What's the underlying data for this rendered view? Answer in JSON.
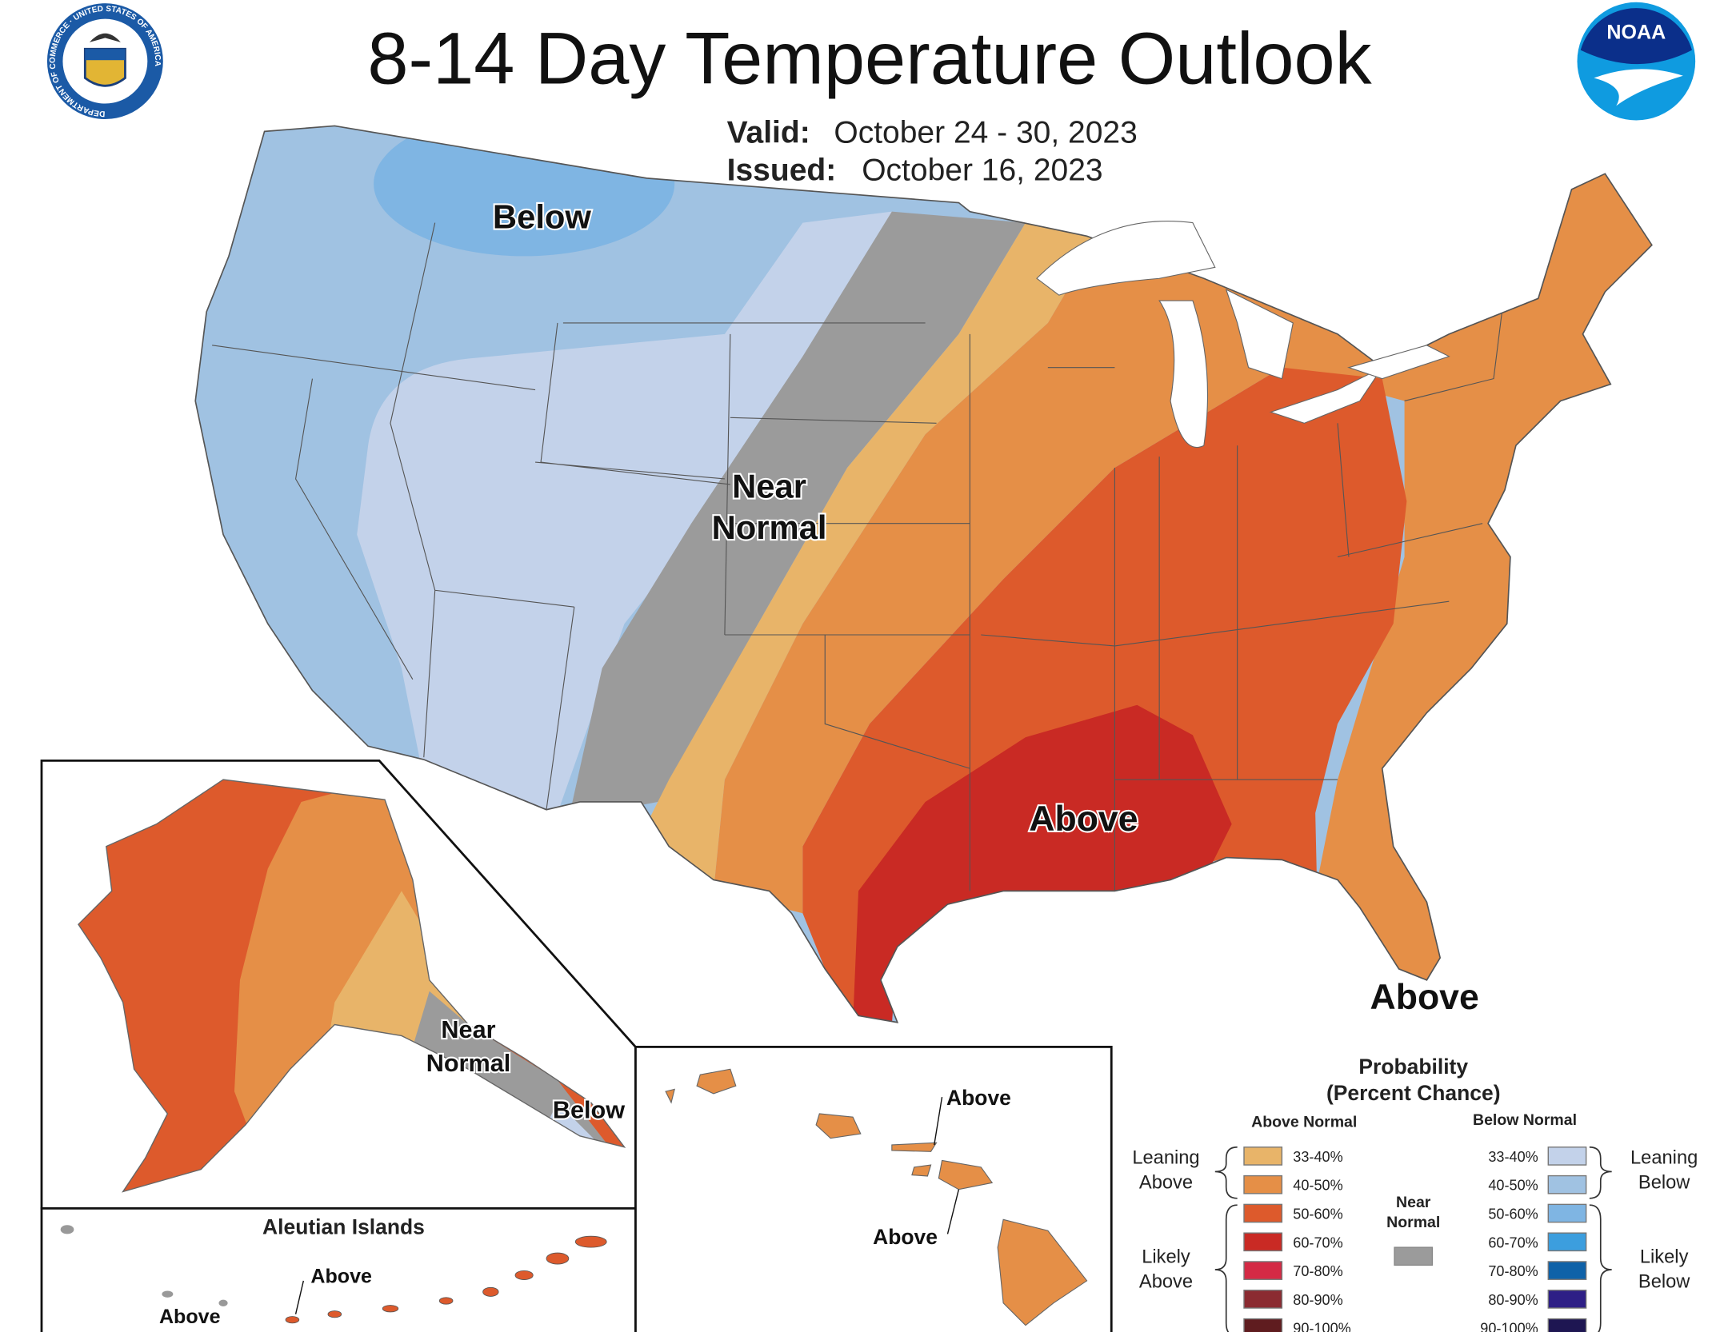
{
  "header": {
    "title": "8-14 Day Temperature Outlook",
    "valid_label": "Valid:",
    "valid_value": "October 24 - 30, 2023",
    "issued_label": "Issued:",
    "issued_value": "October 16, 2023",
    "left_logo_text": "DEPARTMENT OF COMMERCE · UNITED STATES OF AMERICA",
    "right_logo_text": "NOAA"
  },
  "map_labels": {
    "conus_below": "Below",
    "conus_near_1": "Near",
    "conus_near_2": "Normal",
    "conus_above": "Above",
    "conus_above_fl": "Above",
    "ak_near_1": "Near",
    "ak_near_2": "Normal",
    "ak_below": "Below",
    "aleutian_title": "Aleutian Islands",
    "aleutian_above_1": "Above",
    "aleutian_above_2": "Above",
    "hawaii_above_1": "Above",
    "hawaii_above_2": "Above"
  },
  "legend": {
    "title_1": "Probability",
    "title_2": "(Percent Chance)",
    "above_header": "Above Normal",
    "below_header": "Below Normal",
    "near_1": "Near",
    "near_2": "Normal",
    "near_color": "#9b9b9b",
    "leaning_above_1": "Leaning",
    "leaning_above_2": "Above",
    "likely_above_1": "Likely",
    "likely_above_2": "Above",
    "leaning_below_1": "Leaning",
    "leaning_below_2": "Below",
    "likely_below_1": "Likely",
    "likely_below_2": "Below",
    "above": [
      {
        "range": "33-40%",
        "color": "#e8b469"
      },
      {
        "range": "40-50%",
        "color": "#e58f47"
      },
      {
        "range": "50-60%",
        "color": "#dd5a2c"
      },
      {
        "range": "60-70%",
        "color": "#c92a24"
      },
      {
        "range": "70-80%",
        "color": "#d42a45"
      },
      {
        "range": "80-90%",
        "color": "#8b2b31"
      },
      {
        "range": "90-100%",
        "color": "#5f1c1f"
      }
    ],
    "below": [
      {
        "range": "33-40%",
        "color": "#c3d2ea"
      },
      {
        "range": "40-50%",
        "color": "#a0c2e2"
      },
      {
        "range": "50-60%",
        "color": "#7fb5e3"
      },
      {
        "range": "60-70%",
        "color": "#3c9ede"
      },
      {
        "range": "70-80%",
        "color": "#0f62a8"
      },
      {
        "range": "80-90%",
        "color": "#2e1f86"
      },
      {
        "range": "90-100%",
        "color": "#1e1652"
      }
    ]
  }
}
